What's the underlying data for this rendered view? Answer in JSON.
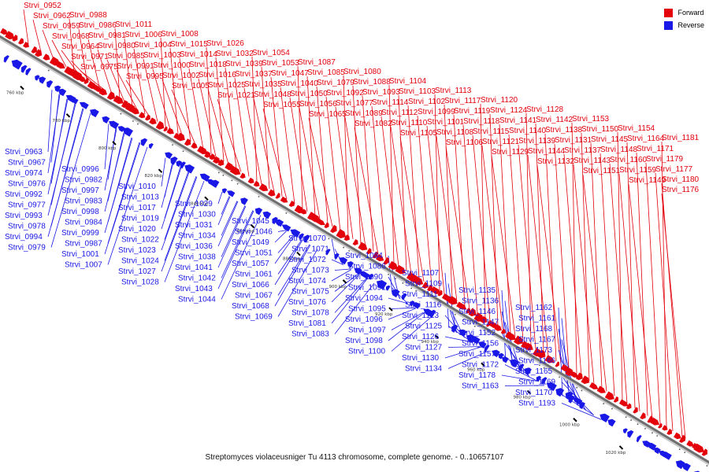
{
  "colors": {
    "forward": "#e3000b",
    "reverse": "#1a18e6",
    "axis": "#6e6e6e",
    "leader_forward": "#e3000b",
    "leader_reverse": "#1a18e6"
  },
  "legend": {
    "forward": "Forward",
    "reverse": "Reverse"
  },
  "caption": "Streptomyces violaceusniger Tu 4113 chromosome, complete genome. - 0..10657107",
  "ticks": [
    "760 kbp",
    "780 kbp",
    "800 kbp",
    "820 kbp",
    "840 kbp",
    "860 kbp",
    "880 kbp",
    "900 kbp",
    "920 kbp",
    "940 kbp",
    "960 kbp",
    "980 kbp",
    "1000 kbp",
    "1020 kbp",
    "1040 kbp"
  ],
  "forward_labels": [
    "Strvi_0952",
    "Strvi_0962",
    "Strvi_0959",
    "Strvi_0968",
    "Strvi_0964",
    "Strvi_0971",
    "Strvi_0975",
    "Strvi_0988",
    "Strvi_0986",
    "Strvi_0981",
    "Strvi_0980",
    "Strvi_0985",
    "Strvi_0991",
    "Strvi_0995",
    "Strvi_1011",
    "Strvi_1006",
    "Strvi_1004",
    "Strvi_1003",
    "Strvi_1000",
    "Strvi_1002",
    "Strvi_1005",
    "Strvi_1008",
    "Strvi_1015",
    "Strvi_1014",
    "Strvi_1018",
    "Strvi_1016",
    "Strvi_1025",
    "Strvi_1021",
    "Strvi_1026",
    "Strvi_1032",
    "Strvi_1039",
    "Strvi_1037",
    "Strvi_1035",
    "Strvi_1048",
    "Strvi_1055",
    "Strvi_1054",
    "Strvi_1053",
    "Strvi_1047",
    "Strvi_1040",
    "Strvi_1050",
    "Strvi_1056",
    "Strvi_1065",
    "Strvi_1087",
    "Strvi_1085",
    "Strvi_1079",
    "Strvi_1092",
    "Strvi_1077",
    "Strvi_1089",
    "Strvi_1082",
    "Strvi_1080",
    "Strvi_1088",
    "Strvi_1093",
    "Strvi_1114",
    "Strvi_1112",
    "Strvi_1110",
    "Strvi_1105",
    "Strvi_1104",
    "Strvi_1103",
    "Strvi_1102",
    "Strvi_1099",
    "Strvi_1101",
    "Strvi_1108",
    "Strvi_1106",
    "Strvi_1113",
    "Strvi_1117",
    "Strvi_1119",
    "Strvi_1118",
    "Strvi_1115",
    "Strvi_1121",
    "Strvi_1129",
    "Strvi_1120",
    "Strvi_1124",
    "Strvi_1141",
    "Strvi_1140",
    "Strvi_1139",
    "Strvi_1144",
    "Strvi_1132",
    "Strvi_1128",
    "Strvi_1142",
    "Strvi_1138",
    "Strvi_1131",
    "Strvi_1137",
    "Strvi_1143",
    "Strvi_1151",
    "Strvi_1153",
    "Strvi_1150",
    "Strvi_1145",
    "Strvi_1148",
    "Strvi_1160",
    "Strvi_1159",
    "Strvi_1149",
    "Strvi_1154",
    "Strvi_1164",
    "Strvi_1171",
    "Strvi_1179",
    "Strvi_1177",
    "Strvi_1180",
    "Strvi_1176",
    "Strvi_1181"
  ],
  "reverse_labels": [
    "Strvi_0963",
    "Strvi_0967",
    "Strvi_0974",
    "Strvi_0976",
    "Strvi_0992",
    "Strvi_0977",
    "Strvi_0993",
    "Strvi_0978",
    "Strvi_0994",
    "Strvi_0979",
    "Strvi_0996",
    "Strvi_0982",
    "Strvi_0997",
    "Strvi_0983",
    "Strvi_0998",
    "Strvi_0984",
    "Strvi_0999",
    "Strvi_0987",
    "Strvi_1001",
    "Strvi_1007",
    "Strvi_1010",
    "Strvi_1013",
    "Strvi_1017",
    "Strvi_1019",
    "Strvi_1020",
    "Strvi_1022",
    "Strvi_1023",
    "Strvi_1024",
    "Strvi_1027",
    "Strvi_1028",
    "Strvi_1029",
    "Strvi_1030",
    "Strvi_1031",
    "Strvi_1034",
    "Strvi_1036",
    "Strvi_1038",
    "Strvi_1041",
    "Strvi_1042",
    "Strvi_1043",
    "Strvi_1044",
    "Strvi_1045",
    "Strvi_1046",
    "Strvi_1049",
    "Strvi_1051",
    "Strvi_1057",
    "Strvi_1061",
    "Strvi_1066",
    "Strvi_1067",
    "Strvi_1068",
    "Strvi_1069",
    "Strvi_1070",
    "Strvi_1071",
    "Strvi_1072",
    "Strvi_1073",
    "Strvi_1074",
    "Strvi_1075",
    "Strvi_1076",
    "Strvi_1078",
    "Strvi_1081",
    "Strvi_1083",
    "Strvi_1084",
    "Strvi_1086",
    "Strvi_1090",
    "Strvi_1091",
    "Strvi_1094",
    "Strvi_1095",
    "Strvi_1096",
    "Strvi_1097",
    "Strvi_1098",
    "Strvi_1100",
    "Strvi_1107",
    "Strvi_1109",
    "Strvi_1111",
    "Strvi_1116",
    "Strvi_1123",
    "Strvi_1125",
    "Strvi_1126",
    "Strvi_1127",
    "Strvi_1130",
    "Strvi_1134",
    "Strvi_1135",
    "Strvi_1136",
    "Strvi_1146",
    "Strvi_1147",
    "Strvi_1152",
    "Strvi_1156",
    "Strvi_1157",
    "Strvi_1172",
    "Strvi_1178",
    "Strvi_1163",
    "Strvi_1162",
    "Strvi_1161",
    "Strvi_1168",
    "Strvi_1167",
    "Strvi_1173",
    "Strvi_1166",
    "Strvi_1165",
    "Strvi_1169",
    "Strvi_1170",
    "Strvi_1193"
  ]
}
